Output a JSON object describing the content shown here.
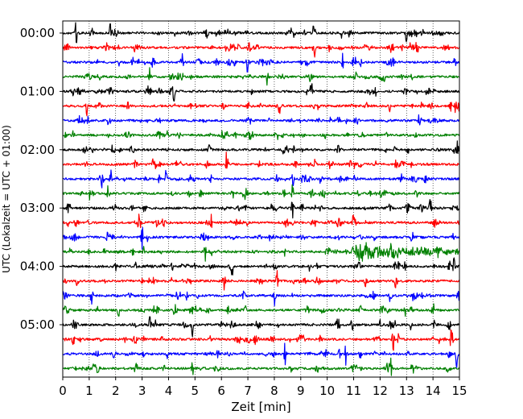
{
  "chart_data": {
    "type": "line",
    "chart_kind": "helicorder",
    "xlabel": "Zeit  [min]",
    "ylabel": "UTC (Lokalzeit = UTC + 01:00)",
    "xlim": [
      0,
      15
    ],
    "x_ticks": [
      "0",
      "1",
      "2",
      "3",
      "4",
      "5",
      "6",
      "7",
      "8",
      "9",
      "10",
      "11",
      "12",
      "13",
      "14",
      "15"
    ],
    "y_tick_labels": [
      "00:00",
      "01:00",
      "02:00",
      "03:00",
      "04:00",
      "05:00"
    ],
    "trace_interval_minutes": 15,
    "trace_count": 24,
    "trace_colors": [
      "#000000",
      "#ff0000",
      "#0000ff",
      "#008000"
    ],
    "vertical_grid": "dotted, every 1 min",
    "noisy_traces": [
      {
        "start": "03:45",
        "from_min": 10.9,
        "to_min": 15
      }
    ],
    "spikes": [
      {
        "start": "00:00",
        "at_min": [
          0.5,
          1.8,
          8.6,
          9.5,
          13.0
        ]
      },
      {
        "start": "00:15",
        "at_min": [
          9.5,
          13.4
        ]
      },
      {
        "start": "00:30",
        "at_min": [
          3.4,
          4.5,
          7.0,
          10.6
        ]
      },
      {
        "start": "00:45",
        "at_min": [
          3.3,
          7.7,
          11.1
        ]
      },
      {
        "start": "01:00",
        "at_min": [
          4.2,
          9.4
        ]
      },
      {
        "start": "01:15",
        "at_min": [
          0.9,
          8.2,
          13.9
        ]
      },
      {
        "start": "01:30",
        "at_min": [
          13.5
        ]
      },
      {
        "start": "02:00",
        "at_min": [
          1.1,
          14.9
        ]
      },
      {
        "start": "02:15",
        "at_min": [
          6.2,
          12.6
        ]
      },
      {
        "start": "02:30",
        "at_min": [
          1.8,
          3.9,
          8.7
        ]
      },
      {
        "start": "02:45",
        "at_min": [
          1.7,
          8.7
        ]
      },
      {
        "start": "03:00",
        "at_min": [
          8.7,
          13.9
        ]
      },
      {
        "start": "03:15",
        "at_min": [
          2.9,
          5.6,
          11.0
        ]
      },
      {
        "start": "03:30",
        "at_min": [
          3.0,
          13.2
        ]
      },
      {
        "start": "03:45",
        "at_min": [
          5.4,
          14.2
        ]
      },
      {
        "start": "04:00",
        "at_min": [
          6.4,
          14.8
        ]
      },
      {
        "start": "04:15",
        "at_min": [
          6.1,
          8.1,
          12.6
        ]
      },
      {
        "start": "04:30",
        "at_min": [
          1.1,
          8.0,
          12.4
        ]
      },
      {
        "start": "04:45",
        "at_min": [
          2.1,
          14.0
        ]
      },
      {
        "start": "05:00",
        "at_min": [
          3.3,
          4.9,
          14.6
        ]
      },
      {
        "start": "05:15",
        "at_min": [
          0.4,
          12.5,
          14.7
        ]
      },
      {
        "start": "05:30",
        "at_min": [
          8.4,
          10.7,
          14.9
        ]
      },
      {
        "start": "05:45",
        "at_min": [
          4.9,
          12.4
        ]
      }
    ]
  }
}
